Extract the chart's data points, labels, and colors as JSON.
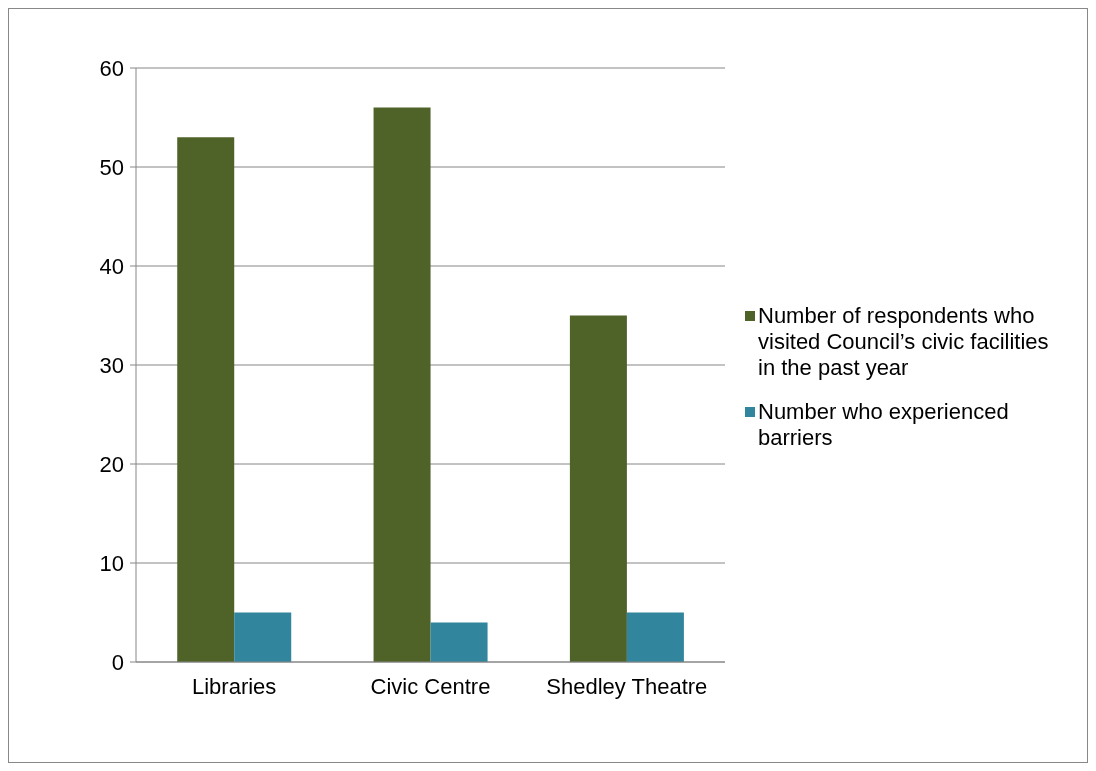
{
  "chart_data": {
    "type": "bar",
    "categories": [
      "Libraries",
      "Civic Centre",
      "Shedley Theatre"
    ],
    "series": [
      {
        "name": "Number of respondents who visited Council’s civic facilities in the past year",
        "color": "#4f6228",
        "values": [
          53,
          56,
          35
        ]
      },
      {
        "name": "Number who experienced barriers",
        "color": "#31859c",
        "values": [
          5,
          4,
          5
        ]
      }
    ],
    "ylim": [
      0,
      60
    ],
    "yticks": [
      0,
      10,
      20,
      30,
      40,
      50,
      60
    ],
    "grid": "y",
    "legend": "right"
  }
}
